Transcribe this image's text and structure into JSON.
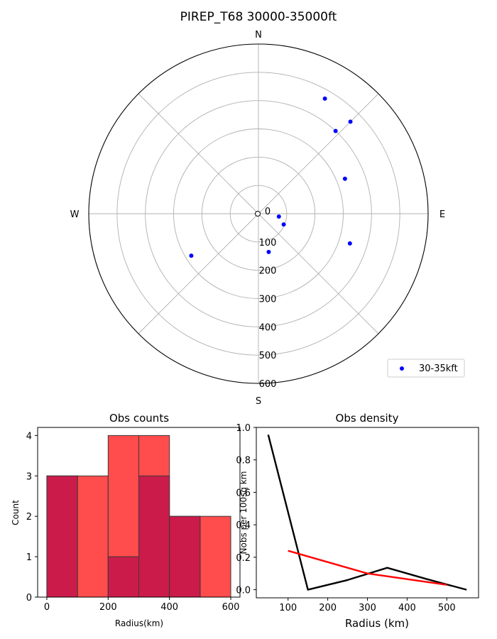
{
  "chart_data": [
    {
      "type": "scatter",
      "projection": "polar",
      "title": "PIREP_T68 30000-35000ft",
      "compass": [
        "N",
        "E",
        "S",
        "W"
      ],
      "r_ticks": [
        "0",
        "100",
        "200",
        "300",
        "400",
        "500",
        "600"
      ],
      "rlim": [
        0,
        600
      ],
      "theta_direction": "clockwise from north",
      "grid": true,
      "legend_position": "lower-right",
      "series": [
        {
          "name": "30-35kft",
          "color": "#0000ff",
          "points_bearing_deg_range_km": [
            [
              30,
              470
            ],
            [
              45,
              460
            ],
            [
              43,
              400
            ],
            [
              68,
              330
            ],
            [
              108,
              340
            ],
            [
              238,
              280
            ],
            [
              165,
              140
            ],
            [
              113,
              97
            ],
            [
              98,
              73
            ]
          ]
        }
      ],
      "origin_marker": "open circle"
    },
    {
      "type": "bar",
      "title": "Obs counts",
      "xlabel": "Radius(km)",
      "ylabel": "Count",
      "xlim": [
        -30,
        630
      ],
      "ylim": [
        0,
        4.2
      ],
      "x_ticks": [
        "0",
        "200",
        "400",
        "600"
      ],
      "y_ticks": [
        "0",
        "1",
        "2",
        "3",
        "4"
      ],
      "series": [
        {
          "color": "#ff3333",
          "bins": [
            [
              0,
              100,
              3
            ],
            [
              100,
              200,
              3
            ],
            [
              200,
              300,
              4
            ],
            [
              300,
              400,
              4
            ],
            [
              400,
              500,
              2
            ],
            [
              500,
              600,
              2
            ]
          ]
        },
        {
          "color": "#c8184a",
          "bins": [
            [
              0,
              100,
              3
            ],
            [
              200,
              300,
              1
            ],
            [
              300,
              400,
              3
            ],
            [
              400,
              500,
              2
            ]
          ]
        }
      ]
    },
    {
      "type": "line",
      "title": "Obs density",
      "xlabel": "Radius (km)",
      "ylabel": "Nobs per 100sq km",
      "xlim": [
        20,
        580
      ],
      "ylim": [
        -0.05,
        1.0
      ],
      "x_ticks": [
        "100",
        "200",
        "300",
        "400",
        "500"
      ],
      "y_ticks": [
        "0.0",
        "0.2",
        "0.4",
        "0.6",
        "0.8",
        "1.0"
      ],
      "series": [
        {
          "color": "#000000",
          "x": [
            50,
            150,
            250,
            350,
            450,
            550
          ],
          "y": [
            0.955,
            0.0,
            0.06,
            0.135,
            0.065,
            0.0
          ]
        },
        {
          "color": "#ff0000",
          "x": [
            100,
            300,
            500
          ],
          "y": [
            0.24,
            0.1,
            0.03
          ]
        }
      ]
    }
  ]
}
